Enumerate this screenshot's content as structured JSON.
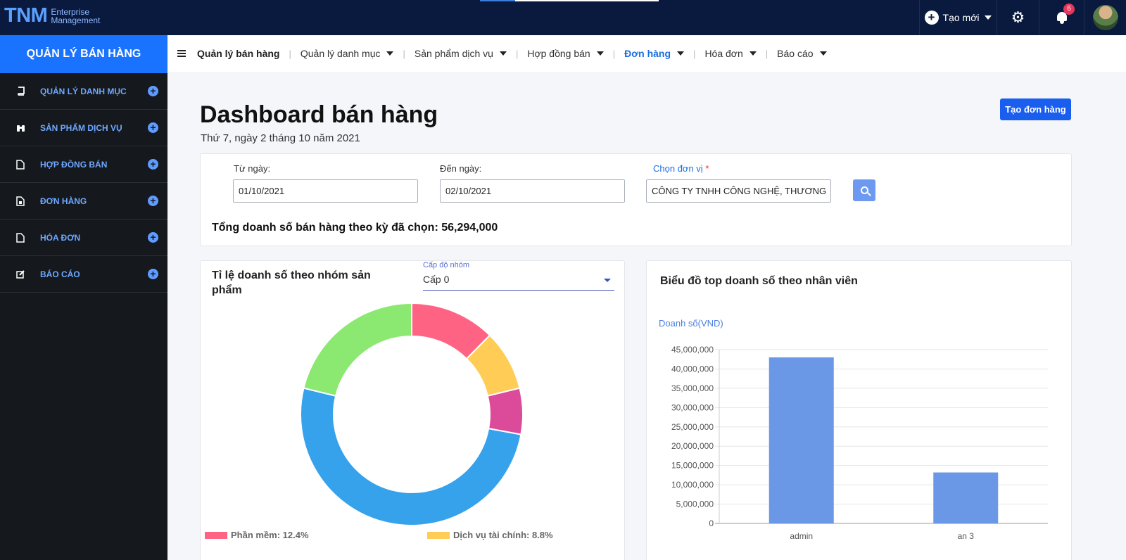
{
  "brand": {
    "mark": "TNM",
    "line1": "Enterprise",
    "line2": "Management"
  },
  "topbar": {
    "new_label": "Tạo mới",
    "notifications": "6"
  },
  "sidebar": {
    "title": "QUẢN LÝ BÁN HÀNG",
    "items": [
      {
        "label": "QUẢN LÝ DANH MỤC",
        "icon": "book-icon"
      },
      {
        "label": "SẢN PHẨM DỊCH VỤ",
        "icon": "binoculars-icon"
      },
      {
        "label": "HỢP ĐỒNG BÁN",
        "icon": "file-icon"
      },
      {
        "label": "ĐƠN HÀNG",
        "icon": "file-invoice-icon"
      },
      {
        "label": "HÓA ĐƠN",
        "icon": "file-icon"
      },
      {
        "label": "BÁO CÁO",
        "icon": "edit-icon"
      }
    ]
  },
  "subnav": {
    "home": "Quản lý bán hàng",
    "items": [
      "Quản lý danh mục",
      "Sản phẩm dịch vụ",
      "Hợp đồng bán",
      "Đơn hàng",
      "Hóa đơn",
      "Báo cáo"
    ],
    "active": "Đơn hàng"
  },
  "page": {
    "title": "Dashboard bán hàng",
    "date": "Thứ 7, ngày 2 tháng 10 năm 2021",
    "create_button": "Tạo đơn hàng"
  },
  "filter": {
    "from_label": "Từ ngày:",
    "from_value": "01/10/2021",
    "to_label": "Đến ngày:",
    "to_value": "02/10/2021",
    "unit_label": "Chọn đơn vị",
    "unit_required": "*",
    "unit_value": "CÔNG TY TNHH CÔNG NGHỆ, THƯƠNG",
    "total_text": "Tổng doanh số bán hàng theo kỳ đã chọn: 56,294,000"
  },
  "pie_card": {
    "title": "Tỉ lệ doanh số theo nhóm sản phẩm",
    "level_label": "Cấp độ nhóm",
    "level_value": "Cấp 0"
  },
  "bar_card": {
    "title": "Biểu đồ top doanh số theo nhân viên"
  },
  "chart_data": [
    {
      "type": "pie",
      "title": "Tỉ lệ doanh số theo nhóm sản phẩm",
      "slices": [
        {
          "label": "Phần mềm",
          "value": 12.4,
          "color": "#ff6384"
        },
        {
          "label": "Dịch vụ tài chính",
          "value": 8.8,
          "color": "#ffcd56"
        },
        {
          "label": "",
          "value": 6.7,
          "color": "#dc4a9a"
        },
        {
          "label": "",
          "value": 50.9,
          "color": "#36a2eb"
        },
        {
          "label": "",
          "value": 21.2,
          "color": "#8be870"
        }
      ],
      "legend": [
        "Phần mềm: 12.4%",
        "Dịch vụ tài chính: 8.8%"
      ]
    },
    {
      "type": "bar",
      "title": "Biểu đồ top doanh số theo nhân viên",
      "ylabel": "Doanh số(VND)",
      "categories": [
        "admin",
        "an 3"
      ],
      "values": [
        43000000,
        13200000
      ],
      "ylim": [
        0,
        45000000
      ],
      "yticks": [
        "0",
        "5,000,000",
        "10,000,000",
        "15,000,000",
        "20,000,000",
        "25,000,000",
        "30,000,000",
        "35,000,000",
        "40,000,000",
        "45,000,000"
      ],
      "color": "#6b98e6",
      "grid": true
    }
  ]
}
